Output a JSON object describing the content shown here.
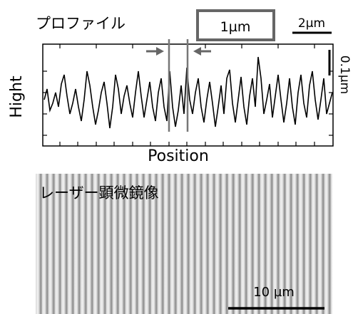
{
  "profile": {
    "title": "プロファイル",
    "magnified_label": "1µm",
    "x_scale_label": "2µm",
    "y_scale_label": "0.1µm",
    "y_axis_label": "Hight",
    "x_axis_label": "Position"
  },
  "image": {
    "title": "レーザー顕微鏡像",
    "scale_label": "10 µm"
  }
}
